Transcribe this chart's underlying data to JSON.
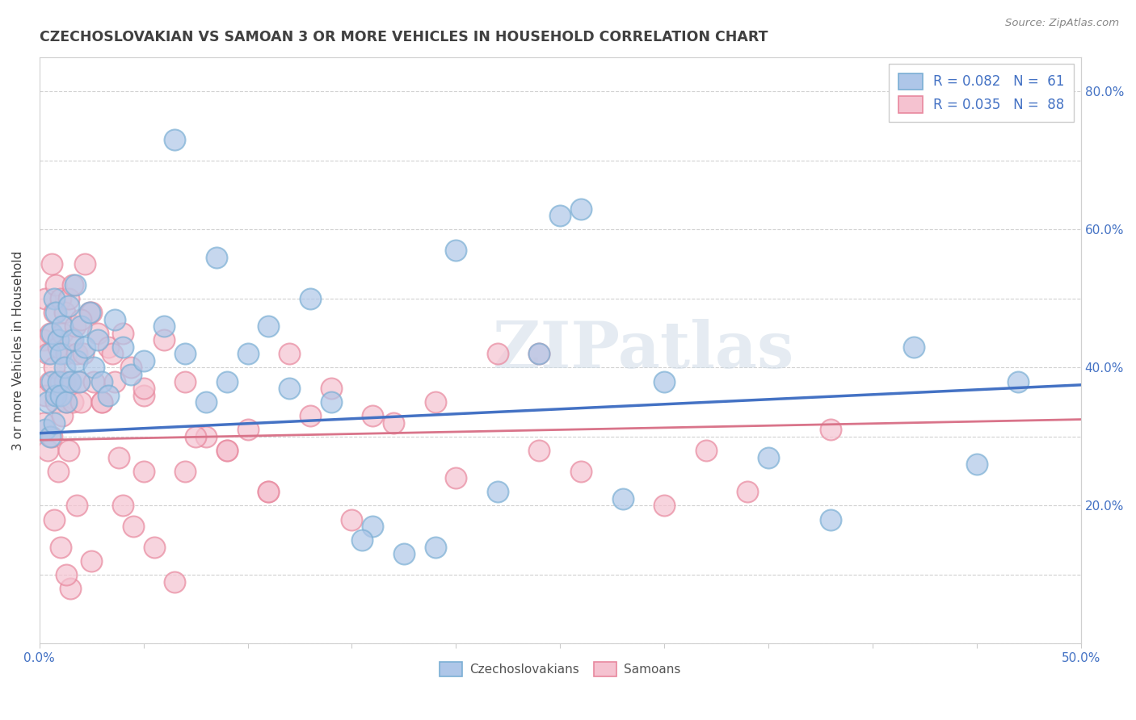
{
  "title": "CZECHOSLOVAKIAN VS SAMOAN 3 OR MORE VEHICLES IN HOUSEHOLD CORRELATION CHART",
  "source": "Source: ZipAtlas.com",
  "ylabel": "3 or more Vehicles in Household",
  "xlim": [
    0.0,
    0.5
  ],
  "ylim": [
    0.0,
    0.85
  ],
  "czech_color": "#aec6e8",
  "czech_edge_color": "#7bafd4",
  "samoan_color": "#f5c2d0",
  "samoan_edge_color": "#e8889e",
  "czech_line_color": "#4472c4",
  "samoan_line_color": "#d9748a",
  "legend_R_czech": "R = 0.082",
  "legend_N_czech": "N =  61",
  "legend_R_samoan": "R = 0.035",
  "legend_N_samoan": "N =  88",
  "watermark": "ZIPatlas",
  "title_color": "#404040",
  "axis_label_color": "#4472c4",
  "legend_text_color": "#4472c4",
  "background_color": "#ffffff",
  "grid_color": "#cccccc",
  "czech_line_start_y": 0.305,
  "czech_line_end_y": 0.375,
  "samoan_line_start_y": 0.295,
  "samoan_line_end_y": 0.325,
  "czech_scatter_x": [
    0.003,
    0.004,
    0.005,
    0.005,
    0.006,
    0.006,
    0.007,
    0.007,
    0.008,
    0.008,
    0.009,
    0.009,
    0.01,
    0.01,
    0.011,
    0.012,
    0.013,
    0.014,
    0.015,
    0.016,
    0.017,
    0.018,
    0.019,
    0.02,
    0.022,
    0.024,
    0.026,
    0.028,
    0.03,
    0.033,
    0.036,
    0.04,
    0.044,
    0.05,
    0.06,
    0.07,
    0.08,
    0.09,
    0.1,
    0.12,
    0.14,
    0.16,
    0.19,
    0.22,
    0.24,
    0.26,
    0.3,
    0.35,
    0.38,
    0.42,
    0.45,
    0.47,
    0.2,
    0.25,
    0.28,
    0.11,
    0.065,
    0.085,
    0.13,
    0.155,
    0.175
  ],
  "czech_scatter_y": [
    0.31,
    0.35,
    0.3,
    0.42,
    0.38,
    0.45,
    0.32,
    0.5,
    0.36,
    0.48,
    0.44,
    0.38,
    0.42,
    0.36,
    0.46,
    0.4,
    0.35,
    0.49,
    0.38,
    0.44,
    0.52,
    0.41,
    0.38,
    0.46,
    0.43,
    0.48,
    0.4,
    0.44,
    0.38,
    0.36,
    0.47,
    0.43,
    0.39,
    0.41,
    0.46,
    0.42,
    0.35,
    0.38,
    0.42,
    0.37,
    0.35,
    0.17,
    0.14,
    0.22,
    0.42,
    0.63,
    0.38,
    0.27,
    0.18,
    0.43,
    0.26,
    0.38,
    0.57,
    0.62,
    0.21,
    0.46,
    0.73,
    0.56,
    0.5,
    0.15,
    0.13
  ],
  "samoan_scatter_x": [
    0.002,
    0.002,
    0.003,
    0.003,
    0.004,
    0.004,
    0.005,
    0.005,
    0.006,
    0.006,
    0.007,
    0.007,
    0.008,
    0.008,
    0.009,
    0.009,
    0.01,
    0.01,
    0.011,
    0.011,
    0.012,
    0.012,
    0.013,
    0.013,
    0.014,
    0.014,
    0.015,
    0.015,
    0.016,
    0.016,
    0.017,
    0.018,
    0.019,
    0.02,
    0.021,
    0.022,
    0.024,
    0.026,
    0.028,
    0.03,
    0.033,
    0.036,
    0.04,
    0.044,
    0.05,
    0.06,
    0.07,
    0.08,
    0.09,
    0.1,
    0.12,
    0.14,
    0.16,
    0.19,
    0.22,
    0.24,
    0.26,
    0.3,
    0.34,
    0.38,
    0.05,
    0.07,
    0.09,
    0.11,
    0.04,
    0.055,
    0.065,
    0.025,
    0.035,
    0.045,
    0.015,
    0.025,
    0.018,
    0.013,
    0.01,
    0.007,
    0.02,
    0.03,
    0.038,
    0.05,
    0.075,
    0.11,
    0.17,
    0.24,
    0.32,
    0.2,
    0.15,
    0.13
  ],
  "samoan_scatter_y": [
    0.32,
    0.44,
    0.5,
    0.36,
    0.42,
    0.28,
    0.45,
    0.38,
    0.55,
    0.3,
    0.48,
    0.4,
    0.35,
    0.52,
    0.43,
    0.25,
    0.5,
    0.38,
    0.45,
    0.33,
    0.48,
    0.38,
    0.42,
    0.35,
    0.5,
    0.28,
    0.44,
    0.38,
    0.52,
    0.35,
    0.46,
    0.42,
    0.38,
    0.35,
    0.42,
    0.55,
    0.48,
    0.38,
    0.45,
    0.35,
    0.43,
    0.38,
    0.45,
    0.4,
    0.36,
    0.44,
    0.38,
    0.3,
    0.28,
    0.31,
    0.42,
    0.37,
    0.33,
    0.35,
    0.42,
    0.28,
    0.25,
    0.2,
    0.22,
    0.31,
    0.25,
    0.25,
    0.28,
    0.22,
    0.2,
    0.14,
    0.09,
    0.48,
    0.42,
    0.17,
    0.08,
    0.12,
    0.2,
    0.1,
    0.14,
    0.18,
    0.47,
    0.35,
    0.27,
    0.37,
    0.3,
    0.22,
    0.32,
    0.42,
    0.28,
    0.24,
    0.18,
    0.33
  ]
}
